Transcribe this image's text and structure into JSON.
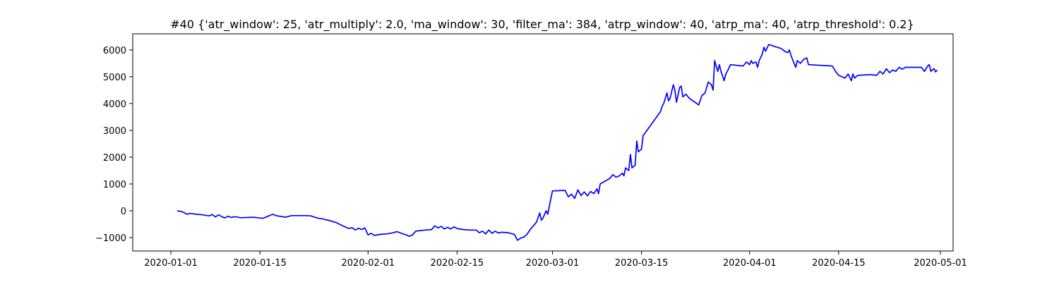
{
  "chart_data": {
    "type": "line",
    "title": "#40 {'atr_window': 25, 'atr_multiply': 2.0, 'ma_window': 30, 'filter_ma': 384, 'atrp_window': 40, 'atrp_ma': 40, 'atrp_threshold': 0.2}",
    "xlabel": "",
    "ylabel": "",
    "xlim": [
      "2019-12-26",
      "2020-05-03"
    ],
    "ylim": [
      -1500,
      6600
    ],
    "grid": false,
    "line_color": "#0000ff",
    "x_ticks": [
      {
        "date": "2020-01-01",
        "label": "2020-01-01"
      },
      {
        "date": "2020-01-15",
        "label": "2020-01-15"
      },
      {
        "date": "2020-02-01",
        "label": "2020-02-01"
      },
      {
        "date": "2020-02-15",
        "label": "2020-02-15"
      },
      {
        "date": "2020-03-01",
        "label": "2020-03-01"
      },
      {
        "date": "2020-03-15",
        "label": "2020-03-15"
      },
      {
        "date": "2020-04-01",
        "label": "2020-04-01"
      },
      {
        "date": "2020-04-15",
        "label": "2020-04-15"
      },
      {
        "date": "2020-05-01",
        "label": "2020-05-01"
      }
    ],
    "y_ticks": [
      {
        "value": -1000,
        "label": "−1000"
      },
      {
        "value": 0,
        "label": "0"
      },
      {
        "value": 1000,
        "label": "1000"
      },
      {
        "value": 2000,
        "label": "2000"
      },
      {
        "value": 3000,
        "label": "3000"
      },
      {
        "value": 4000,
        "label": "4000"
      },
      {
        "value": 5000,
        "label": "5000"
      },
      {
        "value": 6000,
        "label": "6000"
      }
    ],
    "series": [
      {
        "points": [
          [
            "2020-01-02",
            0
          ],
          [
            "2020-01-02 12:00",
            -20
          ],
          [
            "2020-01-03",
            -60
          ],
          [
            "2020-01-03 12:00",
            -130
          ],
          [
            "2020-01-04",
            -100
          ],
          [
            "2020-01-05",
            -130
          ],
          [
            "2020-01-06",
            -150
          ],
          [
            "2020-01-07",
            -190
          ],
          [
            "2020-01-07 12:00",
            -140
          ],
          [
            "2020-01-08",
            -230
          ],
          [
            "2020-01-08 12:00",
            -150
          ],
          [
            "2020-01-09",
            -220
          ],
          [
            "2020-01-09 12:00",
            -270
          ],
          [
            "2020-01-10",
            -200
          ],
          [
            "2020-01-10 12:00",
            -250
          ],
          [
            "2020-01-11",
            -220
          ],
          [
            "2020-01-12",
            -260
          ],
          [
            "2020-01-13",
            -250
          ],
          [
            "2020-01-14",
            -240
          ],
          [
            "2020-01-15",
            -270
          ],
          [
            "2020-01-15 12:00",
            -280
          ],
          [
            "2020-01-16",
            -230
          ],
          [
            "2020-01-17",
            -130
          ],
          [
            "2020-01-17 12:00",
            -180
          ],
          [
            "2020-01-18",
            -200
          ],
          [
            "2020-01-19",
            -240
          ],
          [
            "2020-01-20",
            -180
          ],
          [
            "2020-01-22",
            -180
          ],
          [
            "2020-01-23",
            -190
          ],
          [
            "2020-01-24",
            -270
          ],
          [
            "2020-01-25",
            -310
          ],
          [
            "2020-01-26",
            -370
          ],
          [
            "2020-01-27",
            -440
          ],
          [
            "2020-01-28",
            -560
          ],
          [
            "2020-01-28 12:00",
            -610
          ],
          [
            "2020-01-29",
            -660
          ],
          [
            "2020-01-29 12:00",
            -630
          ],
          [
            "2020-01-30",
            -720
          ],
          [
            "2020-01-30 12:00",
            -650
          ],
          [
            "2020-01-31",
            -700
          ],
          [
            "2020-01-31 12:00",
            -640
          ],
          [
            "2020-02-01",
            -900
          ],
          [
            "2020-02-01 12:00",
            -840
          ],
          [
            "2020-02-02",
            -920
          ],
          [
            "2020-02-03",
            -880
          ],
          [
            "2020-02-04",
            -860
          ],
          [
            "2020-02-05",
            -820
          ],
          [
            "2020-02-05 12:00",
            -780
          ],
          [
            "2020-02-06",
            -820
          ],
          [
            "2020-02-06 12:00",
            -860
          ],
          [
            "2020-02-07",
            -900
          ],
          [
            "2020-02-07 12:00",
            -950
          ],
          [
            "2020-02-08",
            -900
          ],
          [
            "2020-02-08 12:00",
            -760
          ],
          [
            "2020-02-10",
            -720
          ],
          [
            "2020-02-11",
            -700
          ],
          [
            "2020-02-11 12:00",
            -560
          ],
          [
            "2020-02-12",
            -640
          ],
          [
            "2020-02-12 12:00",
            -580
          ],
          [
            "2020-02-13",
            -680
          ],
          [
            "2020-02-13 12:00",
            -620
          ],
          [
            "2020-02-14",
            -680
          ],
          [
            "2020-02-14 12:00",
            -600
          ],
          [
            "2020-02-15",
            -660
          ],
          [
            "2020-02-16",
            -700
          ],
          [
            "2020-02-17",
            -720
          ],
          [
            "2020-02-18",
            -720
          ],
          [
            "2020-02-18 12:00",
            -820
          ],
          [
            "2020-02-19",
            -760
          ],
          [
            "2020-02-19 12:00",
            -860
          ],
          [
            "2020-02-20",
            -720
          ],
          [
            "2020-02-20 12:00",
            -840
          ],
          [
            "2020-02-21",
            -760
          ],
          [
            "2020-02-21 12:00",
            -830
          ],
          [
            "2020-02-22",
            -800
          ],
          [
            "2020-02-23",
            -820
          ],
          [
            "2020-02-24",
            -880
          ],
          [
            "2020-02-24 12:00",
            -1100
          ],
          [
            "2020-02-25",
            -1020
          ],
          [
            "2020-02-25 12:00",
            -980
          ],
          [
            "2020-02-26",
            -880
          ],
          [
            "2020-02-26 12:00",
            -700
          ],
          [
            "2020-02-27",
            -560
          ],
          [
            "2020-02-27 12:00",
            -420
          ],
          [
            "2020-02-28",
            -80
          ],
          [
            "2020-02-28 06:00",
            -350
          ],
          [
            "2020-02-28 12:00",
            -280
          ],
          [
            "2020-02-29",
            0
          ],
          [
            "2020-02-29 06:00",
            -130
          ],
          [
            "2020-03-01",
            740
          ],
          [
            "2020-03-02",
            750
          ],
          [
            "2020-03-03",
            760
          ],
          [
            "2020-03-03 12:00",
            520
          ],
          [
            "2020-03-04",
            620
          ],
          [
            "2020-03-04 12:00",
            460
          ],
          [
            "2020-03-05",
            780
          ],
          [
            "2020-03-05 12:00",
            570
          ],
          [
            "2020-03-06",
            700
          ],
          [
            "2020-03-06 12:00",
            560
          ],
          [
            "2020-03-07",
            720
          ],
          [
            "2020-03-07 12:00",
            640
          ],
          [
            "2020-03-08",
            820
          ],
          [
            "2020-03-08 06:00",
            640
          ],
          [
            "2020-03-08 12:00",
            1000
          ],
          [
            "2020-03-10",
            1200
          ],
          [
            "2020-03-10 12:00",
            1350
          ],
          [
            "2020-03-11",
            1250
          ],
          [
            "2020-03-11 12:00",
            1300
          ],
          [
            "2020-03-12",
            1400
          ],
          [
            "2020-03-12 06:00",
            1300
          ],
          [
            "2020-03-12 12:00",
            1600
          ],
          [
            "2020-03-13",
            1500
          ],
          [
            "2020-03-13 06:00",
            2100
          ],
          [
            "2020-03-13 12:00",
            1600
          ],
          [
            "2020-03-14",
            1700
          ],
          [
            "2020-03-14 06:00",
            2600
          ],
          [
            "2020-03-14 12:00",
            2200
          ],
          [
            "2020-03-15",
            2300
          ],
          [
            "2020-03-15 06:00",
            2800
          ],
          [
            "2020-03-18",
            3700
          ],
          [
            "2020-03-18 06:00",
            3900
          ],
          [
            "2020-03-18 12:00",
            4000
          ],
          [
            "2020-03-19",
            4400
          ],
          [
            "2020-03-19 06:00",
            4100
          ],
          [
            "2020-03-19 12:00",
            4200
          ],
          [
            "2020-03-20",
            4700
          ],
          [
            "2020-03-20 06:00",
            4500
          ],
          [
            "2020-03-20 12:00",
            4050
          ],
          [
            "2020-03-21",
            4600
          ],
          [
            "2020-03-21 06:00",
            4650
          ],
          [
            "2020-03-21 12:00",
            4250
          ],
          [
            "2020-03-22",
            4350
          ],
          [
            "2020-03-22 12:00",
            4200
          ],
          [
            "2020-03-24",
            3950
          ],
          [
            "2020-03-24 12:00",
            4300
          ],
          [
            "2020-03-25",
            4400
          ],
          [
            "2020-03-25 12:00",
            4800
          ],
          [
            "2020-03-26",
            4700
          ],
          [
            "2020-03-26 06:00",
            4500
          ],
          [
            "2020-03-26 12:00",
            5600
          ],
          [
            "2020-03-27",
            5200
          ],
          [
            "2020-03-27 06:00",
            5450
          ],
          [
            "2020-03-27 12:00",
            5200
          ],
          [
            "2020-03-28",
            4850
          ],
          [
            "2020-03-28 06:00",
            5100
          ],
          [
            "2020-03-28 12:00",
            5200
          ],
          [
            "2020-03-29",
            5450
          ],
          [
            "2020-03-31",
            5400
          ],
          [
            "2020-03-31 12:00",
            5550
          ],
          [
            "2020-04-01",
            5450
          ],
          [
            "2020-04-01 06:00",
            5600
          ],
          [
            "2020-04-01 12:00",
            5500
          ],
          [
            "2020-04-02",
            5550
          ],
          [
            "2020-04-02 06:00",
            5350
          ],
          [
            "2020-04-02 12:00",
            5600
          ],
          [
            "2020-04-03",
            5850
          ],
          [
            "2020-04-03 06:00",
            6100
          ],
          [
            "2020-04-03 12:00",
            5950
          ],
          [
            "2020-04-04",
            6200
          ],
          [
            "2020-04-06",
            6050
          ],
          [
            "2020-04-06 12:00",
            5950
          ],
          [
            "2020-04-07",
            5900
          ],
          [
            "2020-04-07 06:00",
            6000
          ],
          [
            "2020-04-07 12:00",
            5800
          ],
          [
            "2020-04-08",
            5500
          ],
          [
            "2020-04-08 06:00",
            5350
          ],
          [
            "2020-04-08 12:00",
            5600
          ],
          [
            "2020-04-09",
            5500
          ],
          [
            "2020-04-09 12:00",
            5650
          ],
          [
            "2020-04-10",
            5700
          ],
          [
            "2020-04-10 06:00",
            5450
          ],
          [
            "2020-04-14",
            5400
          ],
          [
            "2020-04-14 12:00",
            5200
          ],
          [
            "2020-04-15",
            5050
          ],
          [
            "2020-04-16",
            4950
          ],
          [
            "2020-04-16 12:00",
            5100
          ],
          [
            "2020-04-17",
            4850
          ],
          [
            "2020-04-17 06:00",
            5100
          ],
          [
            "2020-04-17 12:00",
            4950
          ],
          [
            "2020-04-18",
            5050
          ],
          [
            "2020-04-20",
            5080
          ],
          [
            "2020-04-21",
            5050
          ],
          [
            "2020-04-21 12:00",
            5200
          ],
          [
            "2020-04-22",
            5100
          ],
          [
            "2020-04-22 12:00",
            5300
          ],
          [
            "2020-04-23",
            5150
          ],
          [
            "2020-04-23 12:00",
            5250
          ],
          [
            "2020-04-24",
            5200
          ],
          [
            "2020-04-24 12:00",
            5350
          ],
          [
            "2020-04-25",
            5280
          ],
          [
            "2020-04-25 12:00",
            5350
          ],
          [
            "2020-04-27",
            5350
          ],
          [
            "2020-04-28",
            5350
          ],
          [
            "2020-04-28 12:00",
            5200
          ],
          [
            "2020-04-29",
            5400
          ],
          [
            "2020-04-29 06:00",
            5450
          ],
          [
            "2020-04-29 12:00",
            5200
          ],
          [
            "2020-04-30",
            5300
          ],
          [
            "2020-04-30 06:00",
            5180
          ],
          [
            "2020-04-30 12:00",
            5250
          ]
        ]
      }
    ]
  }
}
